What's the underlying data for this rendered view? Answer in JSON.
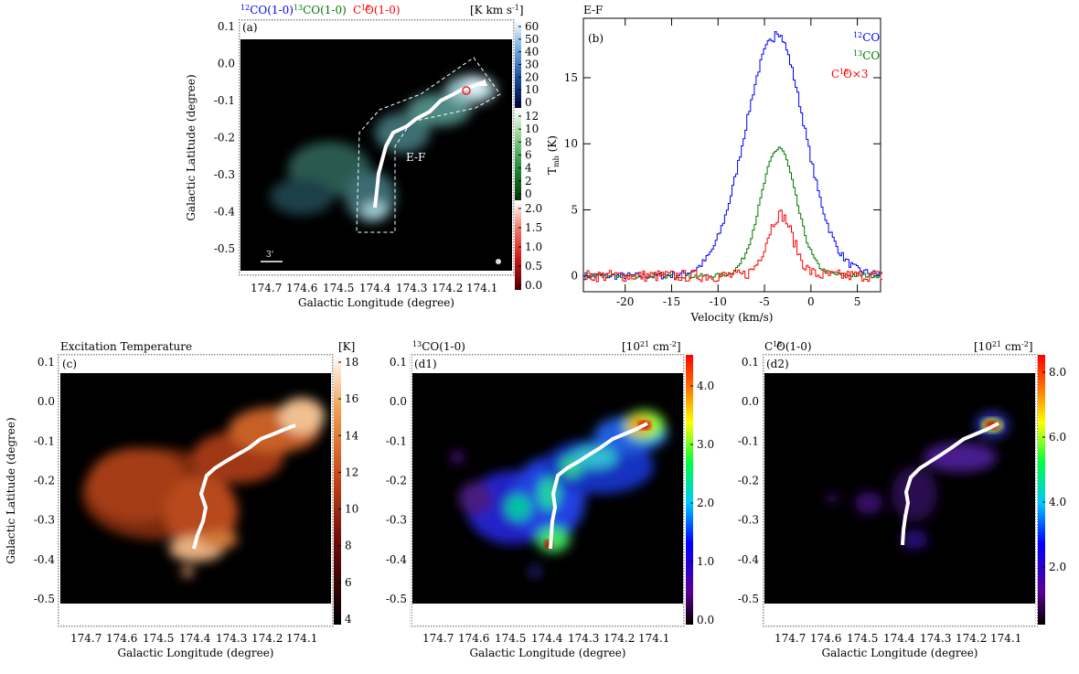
{
  "colors": {
    "co12": "#0000ff",
    "co13": "#007a00",
    "c18o": "#ff0000",
    "ridge": "#ffffff",
    "box": "#ffffff"
  },
  "panel_a": {
    "label": "(a)",
    "title_12co": "CO(1-0)",
    "title_13co": "CO(1-0)",
    "title_c18o": "C  O(1-0)",
    "sup_12": "12",
    "sup_13": "13",
    "sup_18": "18",
    "unit": "[K km s",
    "unit_sup": "-1",
    "unit_end": "]",
    "cut_label": "E-F",
    "scalebar_label": "3'",
    "cbar_12co_ticks": [
      "60",
      "50",
      "40",
      "30",
      "20",
      "10",
      "0"
    ],
    "cbar_13co_ticks": [
      "12",
      "10",
      "8",
      "6",
      "4",
      "2",
      "0"
    ],
    "cbar_c18o_ticks": [
      "2.0",
      "1.5",
      "1.0",
      "0.5",
      "0.0"
    ]
  },
  "panel_b": {
    "label": "(b)",
    "cut_title": "E-F",
    "legend_12co": "CO",
    "legend_13co": "CO",
    "legend_c18o": "C  O×3"
  },
  "panel_c": {
    "title": "Excitation Temperature",
    "unit": "[K]",
    "label": "(c)",
    "cbar_ticks": [
      "18",
      "16",
      "14",
      "12",
      "10",
      "8",
      "6",
      "4"
    ]
  },
  "panel_d1": {
    "title": "CO(1-0)",
    "sup": "13",
    "unit": "[10",
    "unit_sup1": "21",
    "unit_mid": " cm",
    "unit_sup2": "-2",
    "unit_end": "]",
    "label": "(d1)",
    "cbar_ticks": [
      "4.0",
      "3.0",
      "2.0",
      "1.0",
      "0.0"
    ]
  },
  "panel_d2": {
    "title": "C  O(1-0)",
    "sup": "18",
    "unit": "[10",
    "unit_sup1": "21",
    "unit_mid": " cm",
    "unit_sup2": "-2",
    "unit_end": "]",
    "label": "(d2)",
    "cbar_ticks": [
      "8.0",
      "6.0",
      "4.0",
      "2.0"
    ]
  },
  "chart_data": [
    {
      "type": "heatmap",
      "panel": "(a)",
      "xlabel": "Galactic Longitude (degree)",
      "ylabel": "Galactic Latitude (degree)",
      "xlim": [
        174.75,
        174.1
      ],
      "ylim": [
        -0.53,
        0.12
      ],
      "xticks": [
        "174.7",
        "174.6",
        "174.5",
        "174.4",
        "174.3",
        "174.2",
        "174.1"
      ],
      "yticks": [
        "0.1",
        "0.0",
        "-0.1",
        "-0.2",
        "-0.3",
        "-0.4",
        "-0.5"
      ],
      "colorbars": [
        {
          "name": "CO(1-0)",
          "range": [
            0,
            60
          ]
        },
        {
          "name": "CO(1-0)",
          "range": [
            0,
            12
          ]
        },
        {
          "name": "C  O(1-0)",
          "range": [
            0,
            2.0
          ]
        }
      ]
    },
    {
      "type": "line",
      "panel": "(b)",
      "xlabel": "Velocity (km/s)",
      "ylabel": "T",
      "ylabel_sub": "mb",
      "ylabel_unit": "(K)",
      "xlim": [
        -24.5,
        7.5
      ],
      "ylim": [
        -1.2,
        19.5
      ],
      "xticks": [
        "-20",
        "-15",
        "-10",
        "-5",
        "0",
        "5"
      ],
      "yticks": [
        "0",
        "5",
        "10",
        "15"
      ],
      "series": [
        {
          "name": "CO",
          "color": "#0000ff",
          "peak_velocity": -4.0,
          "peak_tmb": 18.0,
          "width": 3.2,
          "tail": 0.6
        },
        {
          "name": "CO",
          "color": "#007a00",
          "peak_velocity": -3.6,
          "peak_tmb": 9.6,
          "width": 1.9,
          "tail": 0.3
        },
        {
          "name": "C  O×3",
          "color": "#ff0000",
          "peak_velocity": -3.4,
          "peak_tmb": 4.6,
          "width": 1.4,
          "tail": 0.2
        }
      ]
    },
    {
      "type": "heatmap",
      "panel": "(c)",
      "xlabel": "Galactic Longitude (degree)",
      "ylabel": "Galactic Latitude (degree)",
      "xticks": [
        "174.7",
        "174.6",
        "174.5",
        "174.4",
        "174.3",
        "174.2",
        "174.1"
      ],
      "yticks": [
        "0.1",
        "0.0",
        "-0.1",
        "-0.2",
        "-0.3",
        "-0.4",
        "-0.5"
      ],
      "colorbar_range": [
        4,
        18
      ]
    },
    {
      "type": "heatmap",
      "panel": "(d1)",
      "xlabel": "Galactic Longitude (degree)",
      "ylabel": "",
      "xticks": [
        "174.7",
        "174.6",
        "174.5",
        "174.4",
        "174.3",
        "174.2",
        "174.1"
      ],
      "yticks": [
        "0.1",
        "0.0",
        "-0.1",
        "-0.2",
        "-0.3",
        "-0.4",
        "-0.5"
      ],
      "colorbar_range": [
        0.0,
        4.3
      ]
    },
    {
      "type": "heatmap",
      "panel": "(d2)",
      "xlabel": "Galactic Longitude (degree)",
      "ylabel": "",
      "xticks": [
        "174.7",
        "174.6",
        "174.5",
        "174.4",
        "174.3",
        "174.2",
        "174.1"
      ],
      "yticks": [
        "0.1",
        "0.0",
        "-0.1",
        "-0.2",
        "-0.3",
        "-0.4",
        "-0.5"
      ],
      "colorbar_range": [
        0.0,
        8.6
      ]
    }
  ]
}
